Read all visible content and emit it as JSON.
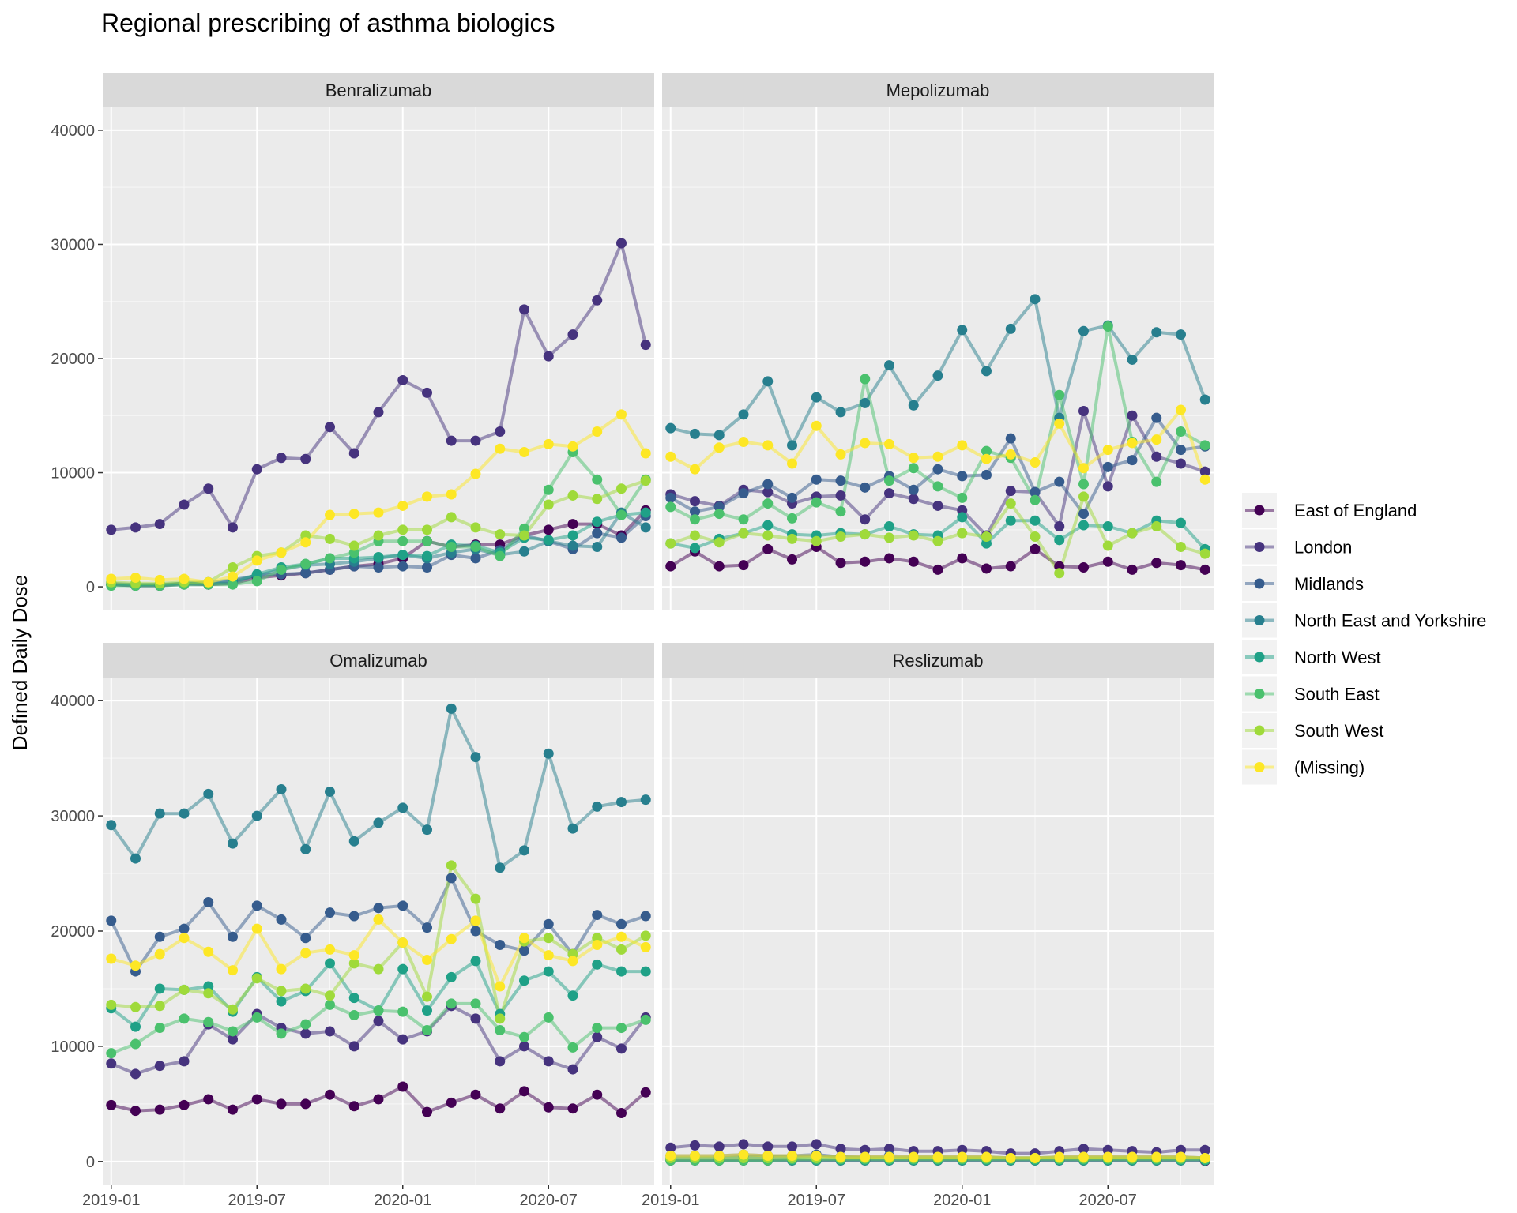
{
  "chart_data": {
    "type": "line",
    "title": "Regional prescribing of asthma biologics",
    "xlabel": "",
    "ylabel": "Defined Daily Dose",
    "x": [
      "2019-01",
      "2019-02",
      "2019-03",
      "2019-04",
      "2019-05",
      "2019-06",
      "2019-07",
      "2019-08",
      "2019-09",
      "2019-10",
      "2019-11",
      "2019-12",
      "2020-01",
      "2020-02",
      "2020-03",
      "2020-04",
      "2020-05",
      "2020-06",
      "2020-07",
      "2020-08",
      "2020-09",
      "2020-10",
      "2020-11"
    ],
    "x_tick_labels": [
      "2019-01",
      "2019-07",
      "2020-01",
      "2020-07"
    ],
    "y_tick_labels": [
      "0",
      "10000",
      "20000",
      "30000",
      "40000"
    ],
    "ylim": [
      -2000,
      42000
    ],
    "grid": true,
    "legend_position": "right",
    "series_names": [
      "East of England",
      "London",
      "Midlands",
      "North East and Yorkshire",
      "North West",
      "South East",
      "South West",
      "(Missing)"
    ],
    "colors": [
      "#440154",
      "#46337E",
      "#365C8D",
      "#277F8E",
      "#1FA187",
      "#4AC16D",
      "#9FDA3A",
      "#FDE725"
    ],
    "panels": [
      {
        "name": "Benralizumab",
        "series": [
          {
            "name": "East of England",
            "values": [
              200,
              100,
              100,
              300,
              200,
              300,
              800,
              1000,
              1200,
              1500,
              1800,
              2000,
              2500,
              4000,
              3500,
              3700,
              3700,
              4500,
              5000,
              5500,
              5500,
              4500,
              6700
            ]
          },
          {
            "name": "London",
            "values": [
              5000,
              5200,
              5500,
              7200,
              8600,
              5200,
              10300,
              11300,
              11200,
              14000,
              11700,
              15300,
              18100,
              17000,
              12800,
              12800,
              13600,
              24300,
              20200,
              22100,
              25100,
              30100,
              21200
            ]
          },
          {
            "name": "Midlands",
            "values": [
              200,
              100,
              100,
              200,
              200,
              500,
              1000,
              1100,
              1200,
              1500,
              1800,
              1700,
              1800,
              1700,
              2800,
              2500,
              3200,
              4500,
              4000,
              3300,
              4700,
              4300,
              6200
            ]
          },
          {
            "name": "North East and Yorkshire",
            "values": [
              300,
              200,
              200,
              300,
              400,
              600,
              1000,
              1500,
              1900,
              2000,
              2200,
              2500,
              2800,
              2500,
              3000,
              3300,
              2800,
              3100,
              4000,
              3600,
              3500,
              6500,
              5200
            ]
          },
          {
            "name": "North West",
            "values": [
              200,
              200,
              200,
              300,
              300,
              300,
              1100,
              1700,
              2000,
              2500,
              2500,
              2600,
              2800,
              2700,
              3700,
              3600,
              3000,
              4300,
              4100,
              4500,
              5700,
              6300,
              6500
            ]
          },
          {
            "name": "South East",
            "values": [
              100,
              100,
              100,
              200,
              200,
              200,
              500,
              1500,
              2000,
              2500,
              3000,
              4000,
              4000,
              4000,
              3500,
              3500,
              2700,
              5100,
              8500,
              11800,
              9400,
              6300,
              9400
            ]
          },
          {
            "name": "South West",
            "values": [
              400,
              300,
              300,
              400,
              400,
              1700,
              2700,
              3000,
              4500,
              4200,
              3600,
              4500,
              5000,
              5000,
              6100,
              5200,
              4600,
              4500,
              7200,
              8000,
              7700,
              8600,
              9300
            ]
          },
          {
            "name": "(Missing)",
            "values": [
              700,
              800,
              600,
              700,
              400,
              900,
              2300,
              3000,
              3900,
              6300,
              6400,
              6500,
              7100,
              7900,
              8100,
              9900,
              12100,
              11800,
              12500,
              12300,
              13600,
              15100,
              11700
            ]
          }
        ]
      },
      {
        "name": "Mepolizumab",
        "series": [
          {
            "name": "East of England",
            "values": [
              1800,
              3100,
              1800,
              1900,
              3300,
              2400,
              3500,
              2100,
              2200,
              2500,
              2200,
              1500,
              2500,
              1600,
              1800,
              3300,
              1800,
              1700,
              2200,
              1500,
              2100,
              1900,
              1500
            ]
          },
          {
            "name": "London",
            "values": [
              8100,
              7500,
              7100,
              8500,
              8300,
              7300,
              7900,
              8000,
              5900,
              8200,
              7700,
              7100,
              6700,
              4500,
              8400,
              8300,
              5300,
              15400,
              8800,
              15000,
              11400,
              10800,
              10100
            ]
          },
          {
            "name": "Midlands",
            "values": [
              7800,
              6600,
              7000,
              8200,
              9000,
              7800,
              9400,
              9300,
              8700,
              9700,
              8500,
              10300,
              9700,
              9800,
              13000,
              8300,
              9200,
              6400,
              10500,
              11100,
              14800,
              12000,
              12300
            ]
          },
          {
            "name": "North East and Yorkshire",
            "values": [
              13900,
              13400,
              13300,
              15100,
              18000,
              12400,
              16600,
              15300,
              16100,
              19400,
              15900,
              18500,
              22500,
              18900,
              22600,
              25200,
              14800,
              22400,
              22900,
              19900,
              22300,
              22100,
              16400
            ]
          },
          {
            "name": "North West",
            "values": [
              3800,
              3400,
              4200,
              4700,
              5400,
              4600,
              4500,
              4700,
              4600,
              5300,
              4600,
              4500,
              6100,
              3800,
              5800,
              5800,
              4100,
              5400,
              5300,
              4700,
              5800,
              5600,
              3300
            ]
          },
          {
            "name": "South East",
            "values": [
              7000,
              5900,
              6400,
              5900,
              7300,
              6000,
              7400,
              6600,
              18200,
              9300,
              10400,
              8800,
              7800,
              11900,
              11300,
              7600,
              16800,
              9000,
              22800,
              12700,
              9200,
              13600,
              12400
            ]
          },
          {
            "name": "South West",
            "values": [
              3800,
              4500,
              3900,
              4700,
              4500,
              4200,
              4000,
              4400,
              4600,
              4300,
              4500,
              4000,
              4700,
              4400,
              7300,
              4400,
              1200,
              7900,
              3600,
              4700,
              5300,
              3500,
              2900
            ]
          },
          {
            "name": "(Missing)",
            "values": [
              11400,
              10300,
              12200,
              12700,
              12400,
              10800,
              14100,
              11600,
              12600,
              12500,
              11300,
              11400,
              12400,
              11200,
              11600,
              10900,
              14300,
              10400,
              12000,
              12600,
              12900,
              15500,
              9400
            ]
          }
        ]
      },
      {
        "name": "Omalizumab",
        "series": [
          {
            "name": "East of England",
            "values": [
              4900,
              4400,
              4500,
              4900,
              5400,
              4500,
              5400,
              5000,
              5000,
              5800,
              4800,
              5400,
              6500,
              4300,
              5100,
              5800,
              4600,
              6100,
              4700,
              4600,
              5800,
              4200,
              6000
            ]
          },
          {
            "name": "London",
            "values": [
              8500,
              7600,
              8300,
              8700,
              11900,
              10600,
              12800,
              11600,
              11100,
              11300,
              10000,
              12200,
              10600,
              11300,
              13500,
              12400,
              8700,
              10000,
              8700,
              8000,
              10800,
              9800,
              12500
            ]
          },
          {
            "name": "Midlands",
            "values": [
              20900,
              16500,
              19500,
              20200,
              22500,
              19500,
              22200,
              21000,
              19400,
              21600,
              21300,
              22000,
              22200,
              20300,
              24600,
              20000,
              18800,
              18300,
              20600,
              18000,
              21400,
              20600,
              21300
            ]
          },
          {
            "name": "North East and Yorkshire",
            "values": [
              29200,
              26300,
              30200,
              30200,
              31900,
              27600,
              30000,
              32300,
              27100,
              32100,
              27800,
              29400,
              30700,
              28800,
              39300,
              35100,
              25500,
              27000,
              35400,
              28900,
              30800,
              31200,
              31400
            ]
          },
          {
            "name": "North West",
            "values": [
              13300,
              11700,
              15000,
              14900,
              15200,
              13000,
              16000,
              13900,
              14800,
              17200,
              14200,
              13100,
              16700,
              13100,
              16000,
              17400,
              12800,
              15700,
              16500,
              14400,
              17100,
              16500,
              16500
            ]
          },
          {
            "name": "South East",
            "values": [
              9400,
              10200,
              11600,
              12400,
              12100,
              11300,
              12500,
              11100,
              11900,
              13600,
              12700,
              13100,
              13000,
              11400,
              13700,
              13700,
              11400,
              10800,
              12500,
              9900,
              11600,
              11600,
              12300
            ]
          },
          {
            "name": "South West",
            "values": [
              13600,
              13400,
              13500,
              14900,
              14600,
              13200,
              15900,
              14800,
              15000,
              14400,
              17200,
              16700,
              19000,
              14300,
              25700,
              22800,
              12400,
              19100,
              19400,
              18000,
              19400,
              18400,
              19600
            ]
          },
          {
            "name": "(Missing)",
            "values": [
              17600,
              17000,
              18000,
              19400,
              18200,
              16600,
              20200,
              16700,
              18100,
              18400,
              17900,
              21000,
              19000,
              17500,
              19300,
              20900,
              15200,
              19400,
              17900,
              17400,
              18800,
              19500,
              18600
            ]
          }
        ]
      },
      {
        "name": "Reslizumab",
        "series": [
          {
            "name": "East of England",
            "values": [
              100,
              100,
              100,
              100,
              100,
              100,
              100,
              100,
              100,
              100,
              100,
              100,
              100,
              100,
              100,
              100,
              100,
              100,
              100,
              100,
              100,
              100,
              50
            ]
          },
          {
            "name": "London",
            "values": [
              1200,
              1400,
              1300,
              1500,
              1300,
              1300,
              1500,
              1100,
              1000,
              1100,
              900,
              900,
              1000,
              900,
              700,
              700,
              900,
              1100,
              1000,
              900,
              800,
              1000,
              1000
            ]
          },
          {
            "name": "Midlands",
            "values": [
              500,
              500,
              500,
              600,
              500,
              500,
              600,
              400,
              400,
              500,
              400,
              400,
              400,
              400,
              300,
              300,
              400,
              400,
              400,
              400,
              400,
              400,
              300
            ]
          },
          {
            "name": "North East and Yorkshire",
            "values": [
              300,
              300,
              300,
              400,
              400,
              400,
              500,
              400,
              300,
              300,
              300,
              300,
              300,
              300,
              300,
              300,
              300,
              300,
              300,
              300,
              300,
              300,
              300
            ]
          },
          {
            "name": "North West",
            "values": [
              100,
              100,
              100,
              100,
              100,
              100,
              100,
              100,
              100,
              100,
              100,
              100,
              100,
              100,
              100,
              100,
              100,
              100,
              100,
              100,
              100,
              100,
              100
            ]
          },
          {
            "name": "South East",
            "values": [
              100,
              100,
              100,
              100,
              100,
              200,
              200,
              200,
              200,
              200,
              200,
              200,
              200,
              200,
              200,
              200,
              200,
              200,
              200,
              200,
              200,
              200,
              200
            ]
          },
          {
            "name": "South West",
            "values": [
              300,
              300,
              300,
              300,
              300,
              300,
              300,
              300,
              300,
              300,
              300,
              300,
              300,
              300,
              300,
              300,
              300,
              300,
              300,
              300,
              300,
              300,
              300
            ]
          },
          {
            "name": "(Missing)",
            "values": [
              500,
              500,
              500,
              600,
              500,
              500,
              500,
              400,
              400,
              400,
              400,
              400,
              400,
              400,
              300,
              300,
              400,
              400,
              400,
              400,
              400,
              400,
              300
            ]
          }
        ]
      }
    ]
  }
}
